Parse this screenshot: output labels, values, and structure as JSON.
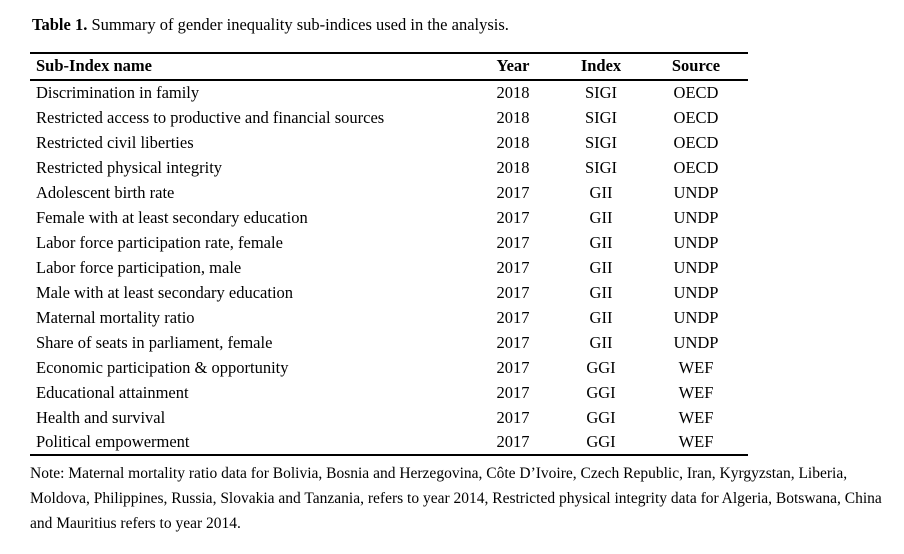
{
  "caption": {
    "label": "Table 1.",
    "text": " Summary of gender inequality sub-indices used in the analysis."
  },
  "table": {
    "headers": [
      "Sub-Index name",
      "Year",
      "Index",
      "Source"
    ],
    "rows": [
      [
        "Discrimination in family",
        "2018",
        "SIGI",
        "OECD"
      ],
      [
        "Restricted access to productive and financial sources",
        "2018",
        "SIGI",
        "OECD"
      ],
      [
        "Restricted civil liberties",
        "2018",
        "SIGI",
        "OECD"
      ],
      [
        "Restricted physical integrity",
        "2018",
        "SIGI",
        "OECD"
      ],
      [
        "Adolescent birth rate",
        "2017",
        "GII",
        "UNDP"
      ],
      [
        "Female with at least secondary education",
        "2017",
        "GII",
        "UNDP"
      ],
      [
        "Labor force participation rate, female",
        "2017",
        "GII",
        "UNDP"
      ],
      [
        "Labor force participation, male",
        "2017",
        "GII",
        "UNDP"
      ],
      [
        "Male with at least secondary education",
        "2017",
        "GII",
        "UNDP"
      ],
      [
        "Maternal mortality ratio",
        "2017",
        "GII",
        "UNDP"
      ],
      [
        "Share of seats in parliament, female",
        "2017",
        "GII",
        "UNDP"
      ],
      [
        "Economic participation & opportunity",
        "2017",
        "GGI",
        "WEF"
      ],
      [
        "Educational attainment",
        "2017",
        "GGI",
        "WEF"
      ],
      [
        "Health and survival",
        "2017",
        "GGI",
        "WEF"
      ],
      [
        "Political empowerment",
        "2017",
        "GGI",
        "WEF"
      ]
    ]
  },
  "note": "Note: Maternal mortality ratio data for Bolivia, Bosnia and Herzegovina, Côte D’Ivoire, Czech Republic, Iran, Kyrgyzstan, Liberia, Moldova, Philippines, Russia, Slovakia and Tanzania, refers to year 2014, Restricted physical integrity data for Algeria, Botswana, China and Mauritius refers to year 2014.",
  "colors": {
    "text": "#000000",
    "background": "#ffffff",
    "rule": "#000000"
  }
}
